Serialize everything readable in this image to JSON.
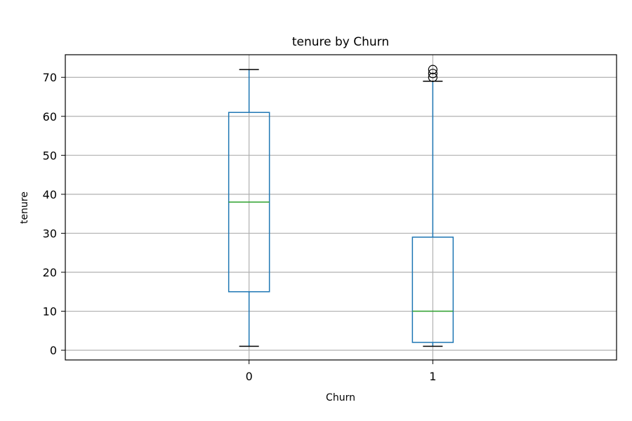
{
  "chart_data": {
    "type": "box",
    "title": "tenure by Churn",
    "xlabel": "Churn",
    "ylabel": "tenure",
    "ylim": [
      -2.5,
      75.8
    ],
    "yticks": [
      0,
      10,
      20,
      30,
      40,
      50,
      60,
      70
    ],
    "grid": true,
    "categories": [
      "0",
      "1"
    ],
    "boxes": [
      {
        "category": "0",
        "whisker_low": 1,
        "q1": 15,
        "median": 38,
        "q3": 61,
        "whisker_high": 72,
        "outliers": []
      },
      {
        "category": "1",
        "whisker_low": 1,
        "q1": 2,
        "median": 10,
        "q3": 29,
        "whisker_high": 69,
        "outliers": [
          70,
          71,
          72
        ]
      }
    ],
    "colors": {
      "box": "#1f77b4",
      "median": "#2ca02c",
      "grid": "#b0b0b0",
      "cap": "#000000"
    }
  }
}
